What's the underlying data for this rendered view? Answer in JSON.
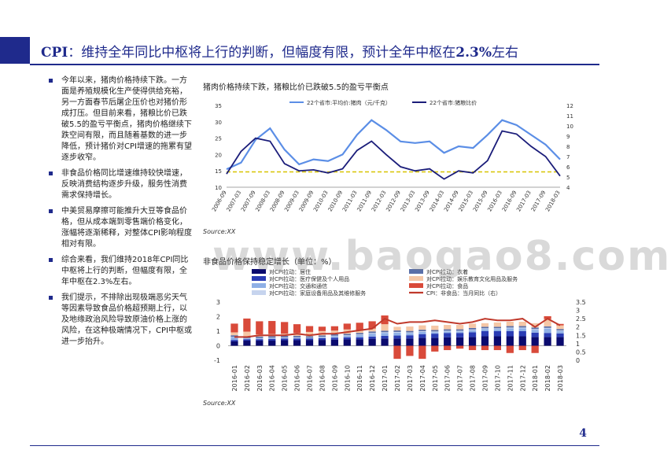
{
  "slide": {
    "title_bold_prefix": "CPI",
    "title_rest": "：维持全年同比中枢将上行的判断，但幅度有限，预计全年中枢在",
    "title_bold_value": "2.3%",
    "title_suffix": "左右",
    "page_number": "4",
    "watermark": "www.baogao8.com"
  },
  "bullets": [
    "今年以来，猪肉价格持续下跌。一方面是养殖规模化生产使得供给充裕，另一方面春节后屠企压价也对猪价形成打压。但目前来看，猪粮比价已跌破5.5的盈亏平衡点，猪肉价格继续下跌空间有限，而且随着基数的进一步降低，预计猪价对CPI增速的拖累有望逐步收窄。",
    "非食品价格同比增速维持较快增速，反映消费结构逐步升级，服务性消费需求保持增长。",
    "中美贸易摩擦可能推升大豆等食品价格，但从成本端到零售端价格变化，涨幅将逐渐稀释，对整体CPI影响程度相对有限。",
    "综合来看，我们维持2018年CPI同比中枢将上行的判断，但幅度有限，全年中枢在2.3%左右。",
    "我们提示，不排除出现极端恶劣天气等因素导致食品价格超预期上行，以及地缘政治风险导致原油价格上涨的风险，在这种极端情况下，CPI中枢或进一步抬升。"
  ],
  "chart_data": [
    {
      "type": "line",
      "title": "猪肉价格持续下跌，猪粮比价已跌破5.5的盈亏平衡点",
      "source": "Source:XX",
      "x": [
        "2006-09",
        "2007-03",
        "2007-09",
        "2008-03",
        "2008-09",
        "2009-03",
        "2009-09",
        "2010-03",
        "2010-09",
        "2011-03",
        "2011-09",
        "2012-03",
        "2012-09",
        "2013-03",
        "2013-09",
        "2014-03",
        "2014-09",
        "2015-03",
        "2015-09",
        "2016-03",
        "2016-09",
        "2017-03",
        "2017-09",
        "2018-03"
      ],
      "ylim_left": [
        10,
        35
      ],
      "yticks_left": [
        10,
        15,
        20,
        25,
        30,
        35
      ],
      "ylim_right": [
        4,
        12
      ],
      "yticks_right": [
        4,
        5,
        6,
        7,
        8,
        9,
        10,
        11,
        12
      ],
      "reference_line_right": 5.5,
      "series": [
        {
          "name": "22个省市:平均价:猪肉（元/千克）",
          "axis": "left",
          "color": "#5b8ee6",
          "values": [
            15.5,
            17.5,
            24.5,
            28.0,
            21.5,
            17.0,
            18.5,
            18.0,
            20.0,
            26.0,
            30.5,
            27.5,
            24.0,
            23.5,
            24.0,
            20.5,
            22.5,
            22.0,
            26.0,
            30.5,
            29.0,
            26.0,
            23.0,
            18.5
          ]
        },
        {
          "name": "22个省市:猪粮比价",
          "axis": "right",
          "color": "#1b1d7a",
          "values": [
            5.3,
            7.5,
            8.8,
            8.5,
            6.3,
            5.6,
            5.7,
            5.4,
            5.8,
            7.6,
            8.5,
            7.2,
            6.0,
            5.6,
            5.8,
            4.8,
            5.6,
            5.4,
            6.6,
            9.5,
            9.2,
            8.0,
            7.0,
            5.1
          ]
        }
      ]
    },
    {
      "type": "bar",
      "stacked": true,
      "title": "非食品价格保持稳定增长（单位：%）",
      "source": "Source:XX",
      "categories": [
        "2016-01",
        "2016-02",
        "2016-03",
        "2016-04",
        "2016-05",
        "2016-06",
        "2016-07",
        "2016-08",
        "2016-09",
        "2016-10",
        "2016-11",
        "2016-12",
        "2017-01",
        "2017-02",
        "2017-03",
        "2017-04",
        "2017-05",
        "2017-06",
        "2017-07",
        "2017-08",
        "2017-09",
        "2017-10",
        "2017-11",
        "2017-12",
        "2018-01",
        "2018-02",
        "2018-03"
      ],
      "ylim_left": [
        -1,
        3
      ],
      "yticks_left": [
        -1,
        0,
        1,
        2,
        3
      ],
      "ylim_right": [
        0,
        3.5
      ],
      "yticks_right": [
        0,
        0.5,
        1,
        1.5,
        2,
        2.5,
        3,
        3.5
      ],
      "series": [
        {
          "name": "对CPI拉动：居住",
          "color": "#0a0a6e",
          "values": [
            0.3,
            0.35,
            0.35,
            0.35,
            0.38,
            0.38,
            0.4,
            0.4,
            0.42,
            0.45,
            0.45,
            0.48,
            0.5,
            0.5,
            0.5,
            0.55,
            0.55,
            0.58,
            0.58,
            0.6,
            0.65,
            0.65,
            0.65,
            0.65,
            0.6,
            0.6,
            0.6
          ]
        },
        {
          "name": "对CPI拉动：医疗保健及个人用品",
          "color": "#2a3cb4",
          "values": [
            0.1,
            0.1,
            0.1,
            0.12,
            0.12,
            0.12,
            0.12,
            0.12,
            0.13,
            0.13,
            0.13,
            0.15,
            0.18,
            0.2,
            0.22,
            0.25,
            0.28,
            0.3,
            0.3,
            0.32,
            0.35,
            0.35,
            0.35,
            0.35,
            0.3,
            0.28,
            0.25
          ]
        },
        {
          "name": "对CPI拉动：交通和通信",
          "color": "#8fb0e6",
          "values": [
            0.2,
            0.05,
            0.05,
            0.05,
            0.05,
            0.05,
            0.0,
            0.05,
            0.1,
            0.1,
            0.15,
            0.2,
            0.2,
            0.2,
            0.15,
            0.15,
            0.1,
            0.1,
            0.1,
            0.15,
            0.15,
            0.15,
            0.2,
            0.2,
            0.2,
            0.3,
            0.15
          ]
        },
        {
          "name": "对CPI拉动：家庭设备用品及其维修服务",
          "color": "#c6d4ee",
          "values": [
            0.02,
            0.02,
            0.03,
            0.03,
            0.03,
            0.03,
            0.03,
            0.04,
            0.04,
            0.04,
            0.05,
            0.05,
            0.05,
            0.05,
            0.05,
            0.05,
            0.05,
            0.05,
            0.05,
            0.05,
            0.05,
            0.05,
            0.05,
            0.05,
            0.05,
            0.05,
            0.05
          ]
        },
        {
          "name": "对CPI拉动：衣着",
          "color": "#5a6fa8",
          "values": [
            0.1,
            0.1,
            0.1,
            0.1,
            0.1,
            0.1,
            0.1,
            0.1,
            0.1,
            0.1,
            0.1,
            0.1,
            0.1,
            0.1,
            0.1,
            0.1,
            0.1,
            0.1,
            0.1,
            0.1,
            0.1,
            0.1,
            0.1,
            0.1,
            0.1,
            0.1,
            0.1
          ]
        },
        {
          "name": "对CPI拉动：娱乐教育文化用品及服务",
          "color": "#f5c7a6",
          "values": [
            0.2,
            0.35,
            0.15,
            0.15,
            0.15,
            0.2,
            0.3,
            0.3,
            0.25,
            0.3,
            0.2,
            0.2,
            0.45,
            0.25,
            0.3,
            0.3,
            0.3,
            0.3,
            0.3,
            0.3,
            0.25,
            0.3,
            0.3,
            0.3,
            0.3,
            0.5,
            0.25
          ]
        },
        {
          "name": "对CPI拉动：食品",
          "color": "#d94a3a",
          "values": [
            0.6,
            0.9,
            0.9,
            0.9,
            0.8,
            0.6,
            0.4,
            0.3,
            0.3,
            0.4,
            0.5,
            0.5,
            0.6,
            -0.9,
            -0.7,
            -0.9,
            -0.4,
            -0.3,
            -0.2,
            -0.3,
            -0.3,
            -0.3,
            -0.5,
            -0.3,
            -0.5,
            0.2,
            0.1
          ]
        },
        {
          "name": "CPI：非食品：当月同比（右）",
          "axis": "right",
          "color": "#c0392b",
          "line": true,
          "values": [
            1.4,
            1.4,
            1.5,
            1.5,
            1.5,
            1.6,
            1.5,
            1.6,
            1.6,
            1.7,
            1.8,
            1.9,
            2.5,
            2.2,
            2.3,
            2.3,
            2.4,
            2.3,
            2.2,
            2.3,
            2.5,
            2.4,
            2.4,
            2.5,
            2.0,
            2.5,
            2.1
          ]
        }
      ]
    }
  ]
}
